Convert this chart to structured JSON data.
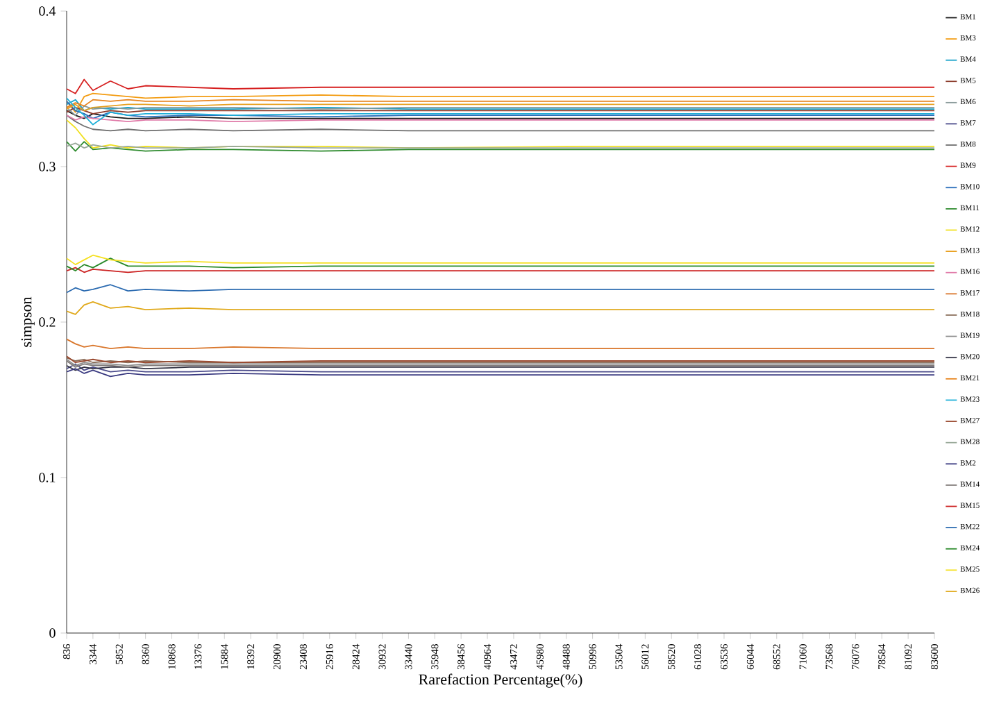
{
  "chart_data": {
    "type": "line",
    "xlabel": "Rarefaction Percentage(%)",
    "ylabel": "simpson",
    "legend": "right",
    "marker": "none",
    "line_style": "solid",
    "xlim": [
      836,
      83600
    ],
    "ylim": [
      0,
      0.4
    ],
    "xticks": [
      836,
      3344,
      5852,
      8360,
      10868,
      13376,
      15884,
      18392,
      20900,
      23408,
      25916,
      28424,
      30932,
      33440,
      35948,
      38456,
      40964,
      43472,
      45980,
      48488,
      50996,
      53504,
      56012,
      58520,
      61028,
      63536,
      66044,
      68552,
      71060,
      73568,
      76076,
      78584,
      81092,
      83600
    ],
    "yticks": [
      0,
      0.1,
      0.2,
      0.3,
      0.4
    ],
    "x": [
      836,
      1672,
      2508,
      3344,
      5016,
      6688,
      8360,
      12540,
      16720,
      25080,
      33440,
      50160,
      66880,
      83600
    ],
    "series": [
      {
        "name": "BM1",
        "color": "#1a1a1a",
        "values": [
          0.336,
          0.333,
          0.331,
          0.334,
          0.332,
          0.331,
          0.331,
          0.332,
          0.331,
          0.331,
          0.331,
          0.331,
          0.331,
          0.331
        ]
      },
      {
        "name": "BM3",
        "color": "#f39c12",
        "values": [
          0.342,
          0.335,
          0.345,
          0.347,
          0.346,
          0.345,
          0.344,
          0.345,
          0.345,
          0.346,
          0.345,
          0.345,
          0.345,
          0.345
        ]
      },
      {
        "name": "BM4",
        "color": "#17a2c8",
        "values": [
          0.34,
          0.343,
          0.336,
          0.338,
          0.337,
          0.338,
          0.337,
          0.337,
          0.337,
          0.338,
          0.337,
          0.337,
          0.337,
          0.337
        ]
      },
      {
        "name": "BM5",
        "color": "#8b3a2a",
        "values": [
          0.335,
          0.338,
          0.336,
          0.334,
          0.336,
          0.335,
          0.336,
          0.336,
          0.336,
          0.336,
          0.336,
          0.336,
          0.336,
          0.336
        ]
      },
      {
        "name": "BM6",
        "color": "#8a9a9a",
        "values": [
          0.338,
          0.333,
          0.339,
          0.337,
          0.338,
          0.337,
          0.338,
          0.338,
          0.338,
          0.337,
          0.338,
          0.338,
          0.338,
          0.338
        ]
      },
      {
        "name": "BM7",
        "color": "#4a4a8a",
        "values": [
          0.17,
          0.173,
          0.169,
          0.171,
          0.168,
          0.169,
          0.168,
          0.168,
          0.169,
          0.168,
          0.168,
          0.168,
          0.168,
          0.168
        ]
      },
      {
        "name": "BM8",
        "color": "#6e6e6e",
        "values": [
          0.333,
          0.329,
          0.326,
          0.324,
          0.323,
          0.324,
          0.323,
          0.324,
          0.323,
          0.324,
          0.323,
          0.323,
          0.323,
          0.323
        ]
      },
      {
        "name": "BM9",
        "color": "#d62020",
        "values": [
          0.35,
          0.347,
          0.356,
          0.349,
          0.355,
          0.35,
          0.352,
          0.351,
          0.35,
          0.351,
          0.351,
          0.351,
          0.351,
          0.351
        ]
      },
      {
        "name": "BM10",
        "color": "#2a6ebb",
        "values": [
          0.342,
          0.336,
          0.334,
          0.331,
          0.335,
          0.333,
          0.332,
          0.333,
          0.333,
          0.332,
          0.333,
          0.333,
          0.333,
          0.333
        ]
      },
      {
        "name": "BM11",
        "color": "#2e8b2e",
        "values": [
          0.316,
          0.31,
          0.316,
          0.311,
          0.312,
          0.311,
          0.31,
          0.311,
          0.311,
          0.31,
          0.311,
          0.311,
          0.311,
          0.311
        ]
      },
      {
        "name": "BM12",
        "color": "#f0e020",
        "values": [
          0.33,
          0.325,
          0.318,
          0.312,
          0.314,
          0.312,
          0.313,
          0.312,
          0.313,
          0.313,
          0.312,
          0.313,
          0.313,
          0.313
        ]
      },
      {
        "name": "BM13",
        "color": "#e8a020",
        "values": [
          0.337,
          0.34,
          0.336,
          0.338,
          0.339,
          0.34,
          0.34,
          0.339,
          0.34,
          0.34,
          0.34,
          0.34,
          0.34,
          0.34
        ]
      },
      {
        "name": "BM16",
        "color": "#e07aa8",
        "values": [
          0.333,
          0.33,
          0.332,
          0.331,
          0.33,
          0.329,
          0.33,
          0.33,
          0.329,
          0.33,
          0.33,
          0.33,
          0.33,
          0.33
        ]
      },
      {
        "name": "BM17",
        "color": "#d9762b",
        "values": [
          0.189,
          0.186,
          0.184,
          0.185,
          0.183,
          0.184,
          0.183,
          0.183,
          0.184,
          0.183,
          0.183,
          0.183,
          0.183,
          0.183
        ]
      },
      {
        "name": "BM18",
        "color": "#8a6e5a",
        "values": [
          0.177,
          0.175,
          0.176,
          0.174,
          0.175,
          0.174,
          0.175,
          0.174,
          0.174,
          0.174,
          0.174,
          0.174,
          0.174,
          0.174
        ]
      },
      {
        "name": "BM19",
        "color": "#8c8c8c",
        "values": [
          0.176,
          0.172,
          0.174,
          0.173,
          0.173,
          0.172,
          0.173,
          0.173,
          0.173,
          0.173,
          0.173,
          0.173,
          0.173,
          0.173
        ]
      },
      {
        "name": "BM20",
        "color": "#333344",
        "values": [
          0.172,
          0.169,
          0.171,
          0.17,
          0.171,
          0.171,
          0.17,
          0.171,
          0.171,
          0.171,
          0.171,
          0.171,
          0.171,
          0.171
        ]
      },
      {
        "name": "BM21",
        "color": "#e8851f",
        "values": [
          0.338,
          0.341,
          0.339,
          0.343,
          0.342,
          0.343,
          0.342,
          0.342,
          0.343,
          0.342,
          0.342,
          0.342,
          0.342,
          0.342
        ]
      },
      {
        "name": "BM23",
        "color": "#20b0d8",
        "values": [
          0.344,
          0.338,
          0.333,
          0.327,
          0.335,
          0.333,
          0.334,
          0.334,
          0.333,
          0.334,
          0.334,
          0.334,
          0.334,
          0.334
        ]
      },
      {
        "name": "BM27",
        "color": "#9a4a30",
        "values": [
          0.178,
          0.174,
          0.175,
          0.176,
          0.174,
          0.175,
          0.174,
          0.175,
          0.174,
          0.175,
          0.175,
          0.175,
          0.175,
          0.175
        ]
      },
      {
        "name": "BM28",
        "color": "#9aaa9a",
        "values": [
          0.313,
          0.315,
          0.312,
          0.314,
          0.312,
          0.313,
          0.312,
          0.312,
          0.313,
          0.312,
          0.312,
          0.312,
          0.312,
          0.312
        ]
      },
      {
        "name": "BM2",
        "color": "#3a3a80",
        "values": [
          0.168,
          0.17,
          0.167,
          0.169,
          0.165,
          0.167,
          0.166,
          0.166,
          0.167,
          0.166,
          0.166,
          0.166,
          0.166,
          0.166
        ]
      },
      {
        "name": "BM14",
        "color": "#807a78",
        "values": [
          0.175,
          0.171,
          0.173,
          0.172,
          0.172,
          0.171,
          0.172,
          0.172,
          0.172,
          0.172,
          0.172,
          0.172,
          0.172,
          0.172
        ]
      },
      {
        "name": "BM15",
        "color": "#cc2222",
        "values": [
          0.233,
          0.235,
          0.232,
          0.234,
          0.233,
          0.232,
          0.233,
          0.233,
          0.233,
          0.233,
          0.233,
          0.233,
          0.233,
          0.233
        ]
      },
      {
        "name": "BM22",
        "color": "#2a6ab0",
        "values": [
          0.219,
          0.222,
          0.22,
          0.221,
          0.224,
          0.22,
          0.221,
          0.22,
          0.221,
          0.221,
          0.221,
          0.221,
          0.221,
          0.221
        ]
      },
      {
        "name": "BM24",
        "color": "#2a8a2a",
        "values": [
          0.236,
          0.233,
          0.237,
          0.235,
          0.241,
          0.236,
          0.236,
          0.236,
          0.235,
          0.236,
          0.236,
          0.236,
          0.236,
          0.236
        ]
      },
      {
        "name": "BM25",
        "color": "#f5e020",
        "values": [
          0.241,
          0.237,
          0.24,
          0.243,
          0.24,
          0.239,
          0.238,
          0.239,
          0.238,
          0.238,
          0.238,
          0.238,
          0.238,
          0.238
        ]
      },
      {
        "name": "BM26",
        "color": "#e0a818",
        "values": [
          0.207,
          0.205,
          0.211,
          0.213,
          0.209,
          0.21,
          0.208,
          0.209,
          0.208,
          0.208,
          0.208,
          0.208,
          0.208,
          0.208
        ]
      }
    ]
  }
}
